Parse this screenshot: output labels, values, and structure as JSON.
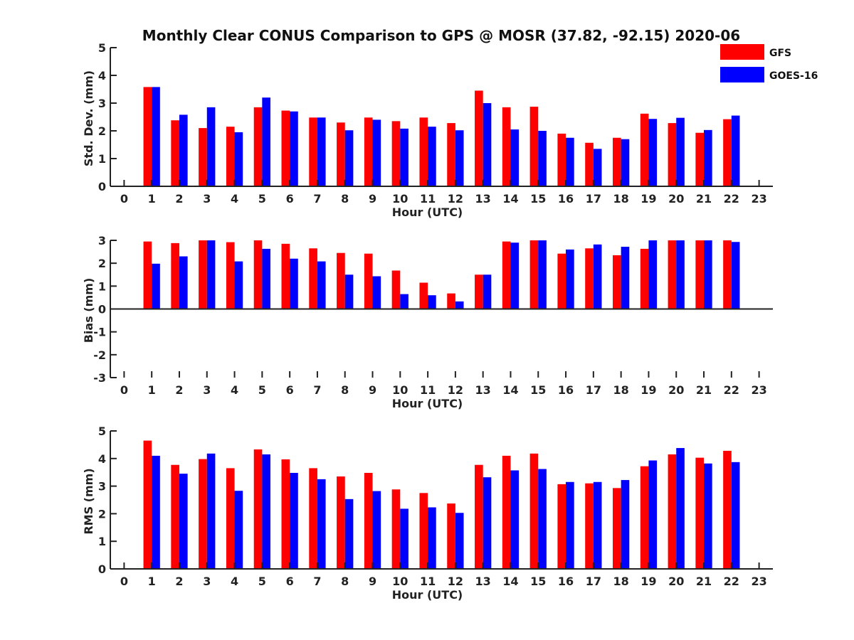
{
  "title": "Monthly Clear CONUS Comparison to GPS @ MOSR (37.82, -92.15) 2020-06",
  "colors": {
    "gfs": "#ff0000",
    "goes": "#0000ff",
    "axis": "#222222"
  },
  "legend": {
    "placement": "top-right",
    "entries": [
      "GFS",
      "GOES-16"
    ]
  },
  "chart_data": [
    {
      "type": "bar",
      "id": "stddev",
      "xlabel": "Hour (UTC)",
      "ylabel": "Std. Dev. (mm)",
      "xlim": [
        -0.5,
        23.5
      ],
      "ylim": [
        0,
        5
      ],
      "yticks": [
        0,
        1,
        2,
        3,
        4,
        5
      ],
      "xticks": [
        0,
        1,
        2,
        3,
        4,
        5,
        6,
        7,
        8,
        9,
        10,
        11,
        12,
        13,
        14,
        15,
        16,
        17,
        18,
        19,
        20,
        21,
        22,
        23
      ],
      "x": [
        1,
        2,
        3,
        4,
        5,
        6,
        7,
        8,
        9,
        10,
        11,
        12,
        13,
        14,
        15,
        16,
        17,
        18,
        19,
        20,
        21,
        22
      ],
      "series": [
        {
          "name": "GFS",
          "values": [
            3.58,
            2.38,
            2.1,
            2.15,
            2.85,
            2.73,
            2.48,
            2.3,
            2.48,
            2.35,
            2.48,
            2.28,
            3.45,
            2.85,
            2.87,
            1.9,
            1.57,
            1.75,
            2.62,
            2.28,
            1.93,
            2.42
          ]
        },
        {
          "name": "GOES-16",
          "values": [
            3.58,
            2.58,
            2.85,
            1.95,
            3.2,
            2.7,
            2.48,
            2.02,
            2.4,
            2.08,
            2.15,
            2.02,
            3.0,
            2.05,
            2.0,
            1.75,
            1.35,
            1.7,
            2.43,
            2.47,
            2.03,
            2.55
          ]
        }
      ],
      "grid": false
    },
    {
      "type": "bar",
      "id": "bias",
      "xlabel": "Hour (UTC)",
      "ylabel": "Bias (mm)",
      "xlim": [
        -0.5,
        23.5
      ],
      "ylim": [
        -3,
        3
      ],
      "yticks": [
        -3,
        -2,
        -1,
        0,
        1,
        2,
        3
      ],
      "xticks": [
        0,
        1,
        2,
        3,
        4,
        5,
        6,
        7,
        8,
        9,
        10,
        11,
        12,
        13,
        14,
        15,
        16,
        17,
        18,
        19,
        20,
        21,
        22,
        23
      ],
      "x": [
        1,
        2,
        3,
        4,
        5,
        6,
        7,
        8,
        9,
        10,
        11,
        12,
        13,
        14,
        15,
        16,
        17,
        18,
        19,
        20,
        21,
        22
      ],
      "series": [
        {
          "name": "GFS",
          "values": [
            2.95,
            2.88,
            3.0,
            2.92,
            3.0,
            2.85,
            2.65,
            2.45,
            2.42,
            1.68,
            1.15,
            0.68,
            1.5,
            2.95,
            3.0,
            2.42,
            2.65,
            2.35,
            2.63,
            3.0,
            3.0,
            3.0
          ]
        },
        {
          "name": "GOES-16",
          "values": [
            1.98,
            2.3,
            3.0,
            2.08,
            2.63,
            2.2,
            2.08,
            1.5,
            1.43,
            0.65,
            0.6,
            0.33,
            1.5,
            2.9,
            3.0,
            2.6,
            2.82,
            2.72,
            3.0,
            3.0,
            3.0,
            2.93
          ]
        }
      ],
      "grid": false
    },
    {
      "type": "bar",
      "id": "rms",
      "xlabel": "Hour (UTC)",
      "ylabel": "RMS (mm)",
      "xlim": [
        -0.5,
        23.5
      ],
      "ylim": [
        0,
        5
      ],
      "yticks": [
        0,
        1,
        2,
        3,
        4,
        5
      ],
      "xticks": [
        0,
        1,
        2,
        3,
        4,
        5,
        6,
        7,
        8,
        9,
        10,
        11,
        12,
        13,
        14,
        15,
        16,
        17,
        18,
        19,
        20,
        21,
        22,
        23
      ],
      "x": [
        1,
        2,
        3,
        4,
        5,
        6,
        7,
        8,
        9,
        10,
        11,
        12,
        13,
        14,
        15,
        16,
        17,
        18,
        19,
        20,
        21,
        22
      ],
      "series": [
        {
          "name": "GFS",
          "values": [
            4.65,
            3.77,
            3.98,
            3.65,
            4.33,
            3.97,
            3.65,
            3.35,
            3.48,
            2.88,
            2.75,
            2.37,
            3.77,
            4.1,
            4.18,
            3.07,
            3.1,
            2.93,
            3.72,
            4.15,
            4.03,
            4.28
          ]
        },
        {
          "name": "GOES-16",
          "values": [
            4.1,
            3.45,
            4.18,
            2.83,
            4.15,
            3.48,
            3.25,
            2.53,
            2.82,
            2.18,
            2.23,
            2.03,
            3.32,
            3.57,
            3.62,
            3.15,
            3.15,
            3.22,
            3.93,
            4.38,
            3.82,
            3.87
          ]
        }
      ],
      "grid": false
    }
  ]
}
